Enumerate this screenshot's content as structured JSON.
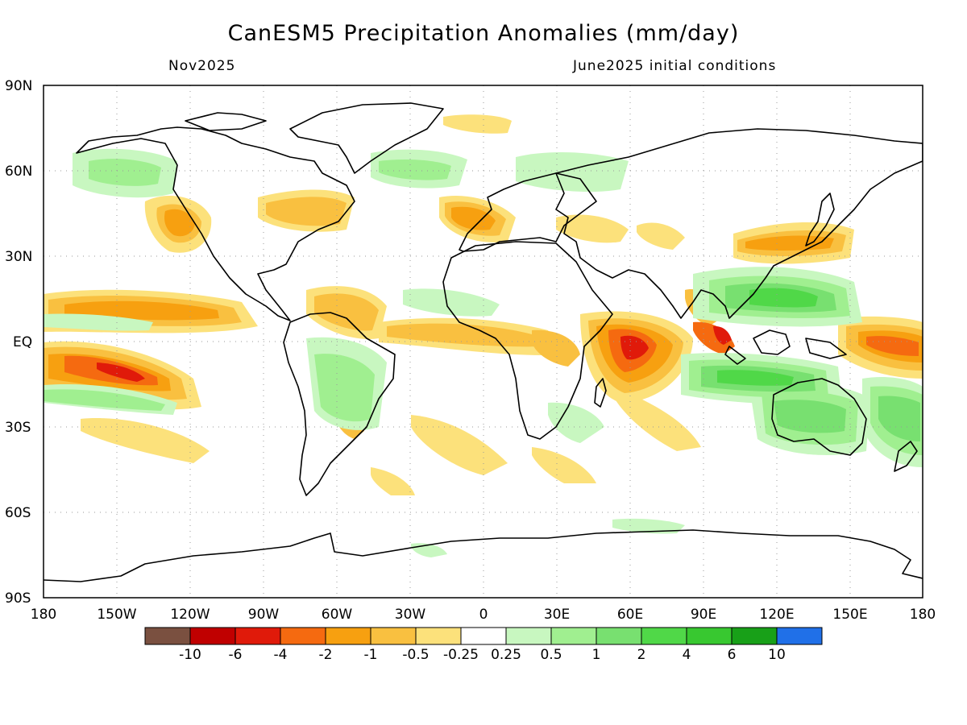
{
  "header": {
    "title": "CanESM5 Precipitation Anomalies (mm/day)",
    "valid_month": "Nov2025",
    "init_note": "June2025 initial conditions"
  },
  "axes": {
    "lat_labels": [
      "90N",
      "60N",
      "30N",
      "EQ",
      "30S",
      "60S",
      "90S"
    ],
    "lon_labels": [
      "180",
      "150W",
      "120W",
      "90W",
      "60W",
      "30W",
      "0",
      "30E",
      "60E",
      "90E",
      "120E",
      "150E",
      "180"
    ]
  },
  "colorbar": {
    "colors": [
      "#7a5040",
      "#c00000",
      "#e01a0a",
      "#f56a10",
      "#f7a010",
      "#f9c040",
      "#fce17b",
      "#ffffff",
      "#c8f7c0",
      "#a0ef90",
      "#78e070",
      "#50d848",
      "#38c830",
      "#18a018",
      "#2070e8"
    ],
    "labels": [
      "-10",
      "-6",
      "-4",
      "-2",
      "-1",
      "-0.5",
      "-0.25",
      "0.25",
      "0.5",
      "1",
      "2",
      "4",
      "6",
      "10"
    ]
  },
  "colors": {
    "coast": "#000000",
    "grid": "#9a9a9a"
  }
}
